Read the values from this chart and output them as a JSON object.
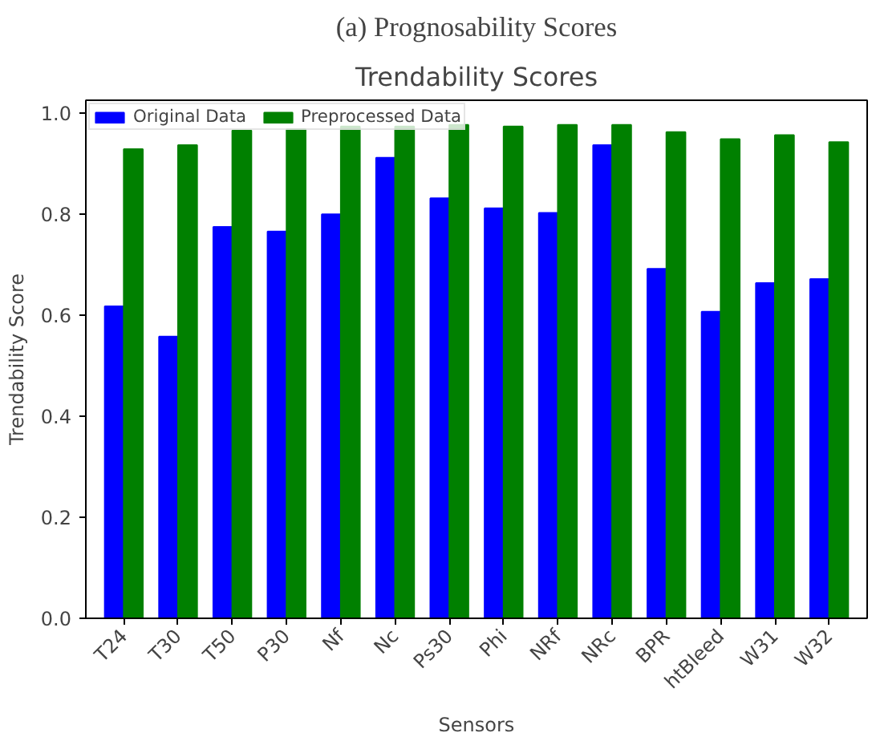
{
  "chart_data": {
    "type": "bar",
    "title": "Trendability Scores",
    "xlabel": "Sensors",
    "ylabel": "Trendability Score",
    "annotations": [
      "(a) Prognosability Scores"
    ],
    "categories": [
      "T24",
      "T30",
      "T50",
      "P30",
      "Nf",
      "Nc",
      "Ps30",
      "Phi",
      "NRf",
      "NRc",
      "BPR",
      "htBleed",
      "W31",
      "W32"
    ],
    "series": [
      {
        "name": "Original Data",
        "color": "#0000ff",
        "values": [
          0.618,
          0.558,
          0.775,
          0.766,
          0.8,
          0.912,
          0.832,
          0.812,
          0.803,
          0.937,
          0.692,
          0.607,
          0.664,
          0.672
        ]
      },
      {
        "name": "Preprocessed Data",
        "color": "#008000",
        "values": [
          0.929,
          0.937,
          0.966,
          0.969,
          0.974,
          0.974,
          0.977,
          0.974,
          0.977,
          0.977,
          0.963,
          0.949,
          0.957,
          0.943
        ]
      }
    ],
    "ylim": [
      0,
      1.026
    ],
    "yticks": [
      {
        "value": 0,
        "label": "0.0"
      },
      0.2,
      0.4,
      0.6,
      0.8,
      {
        "value": 1,
        "label": "1.0"
      }
    ],
    "grid": false,
    "legend": "top left"
  }
}
